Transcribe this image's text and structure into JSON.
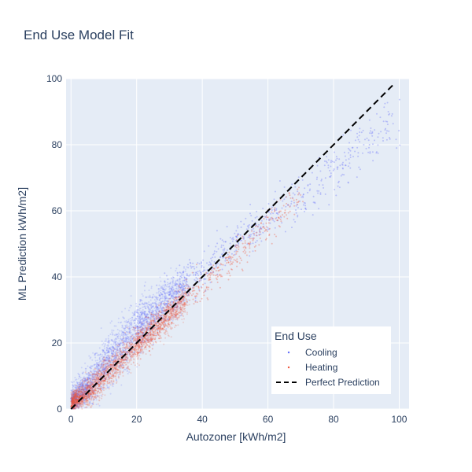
{
  "chart_data": {
    "type": "scatter",
    "title": "End Use Model Fit",
    "xlabel": "Autozoner [kWh/m2]",
    "ylabel": "ML Prediction kWh/m2]",
    "xlim": [
      -1.5,
      103
    ],
    "ylim": [
      0,
      100
    ],
    "x_ticks": [
      0,
      20,
      40,
      60,
      80,
      100
    ],
    "y_ticks": [
      0,
      20,
      40,
      60,
      80,
      100
    ],
    "grid": true,
    "legend_position": "bottom-right",
    "legend_title": "End Use",
    "colors": {
      "plot_background": "#e5ecf6",
      "grid": "#ffffff",
      "cooling": "#636efa",
      "heating": "#ef553b",
      "perfect": "#000000"
    },
    "series": [
      {
        "name": "Cooling",
        "kind": "markers",
        "color": "#636efa",
        "band": {
          "x": [
            0,
            5,
            10,
            15,
            20,
            25,
            30,
            35,
            40,
            45,
            50,
            55,
            60,
            70,
            80,
            90,
            100
          ],
          "y_center": [
            2,
            7,
            13,
            18.5,
            24,
            29,
            33.5,
            38,
            42,
            46,
            50,
            53.5,
            57,
            64,
            72,
            80,
            88
          ],
          "y_spread": [
            3.5,
            5.5,
            7,
            7.5,
            7.5,
            7,
            6.5,
            6,
            6,
            6,
            6,
            6,
            6,
            7,
            7,
            8,
            8
          ]
        }
      },
      {
        "name": "Heating",
        "kind": "markers",
        "color": "#ef553b",
        "band": {
          "x": [
            0,
            5,
            10,
            15,
            20,
            25,
            30,
            35,
            40,
            45,
            50,
            55,
            60,
            65,
            70
          ],
          "y_center": [
            2,
            5,
            10,
            14.5,
            19.5,
            24,
            28.5,
            33,
            37,
            41.5,
            46,
            51,
            56,
            60,
            64
          ],
          "y_spread": [
            3,
            4,
            4.5,
            4.5,
            4.5,
            4.5,
            4.5,
            4.5,
            4.5,
            4.5,
            5,
            5,
            5,
            5,
            5
          ]
        }
      },
      {
        "name": "Perfect Prediction",
        "kind": "line",
        "style": "dashed",
        "color": "#000000",
        "x": [
          0,
          98
        ],
        "y": [
          0,
          98
        ]
      }
    ]
  }
}
